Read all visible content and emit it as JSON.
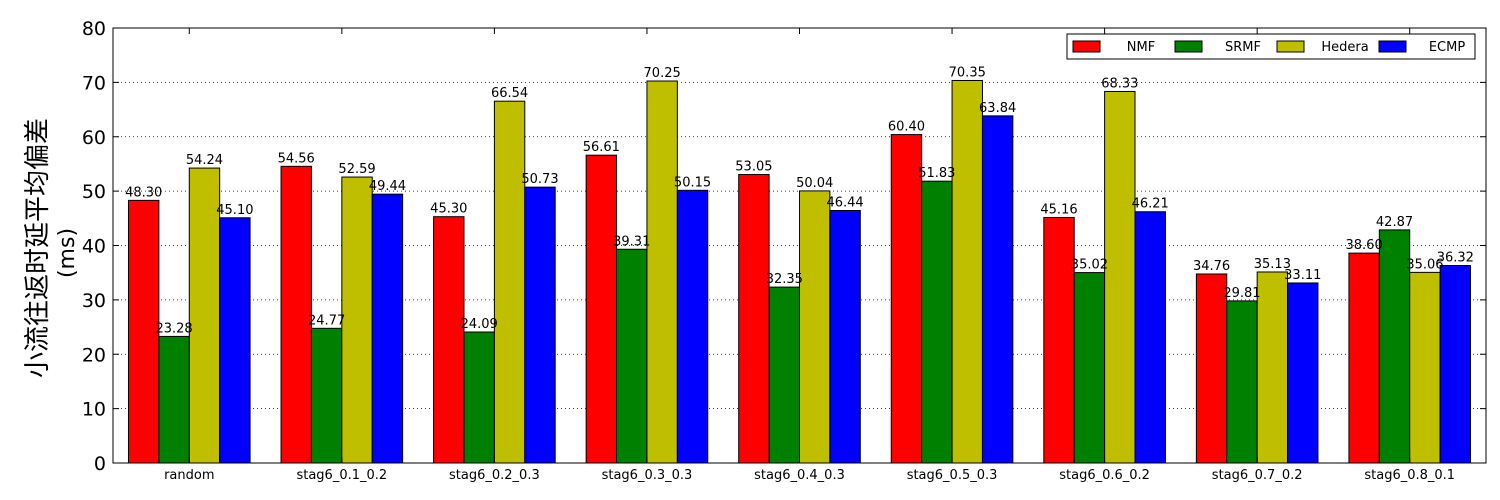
{
  "chart_data": {
    "type": "bar",
    "title": "",
    "xlabel": "",
    "ylabel": "小流往返时延平均偏差",
    "ylabel_unit": "(ms)",
    "ylim": [
      0,
      80
    ],
    "yticks": [
      0,
      10,
      20,
      30,
      40,
      50,
      60,
      70,
      80
    ],
    "grid": true,
    "legend_position": "top-right",
    "categories": [
      "random",
      "stag6_0.1_0.2",
      "stag6_0.2_0.3",
      "stag6_0.3_0.3",
      "stag6_0.4_0.3",
      "stag6_0.5_0.3",
      "stag6_0.6_0.2",
      "stag6_0.7_0.2",
      "stag6_0.8_0.1"
    ],
    "series": [
      {
        "name": "NMF",
        "color": "#ff0000",
        "values": [
          48.3,
          54.56,
          45.3,
          56.61,
          53.05,
          60.4,
          45.16,
          34.76,
          38.6
        ],
        "labels": [
          "48.30",
          "54.56",
          "45.30",
          "56.61",
          "53.05",
          "60.40",
          "45.16",
          "34.76",
          "38.60"
        ]
      },
      {
        "name": "SRMF",
        "color": "#008000",
        "values": [
          23.28,
          24.77,
          24.09,
          39.31,
          32.35,
          51.83,
          35.02,
          29.81,
          42.87
        ],
        "labels": [
          "23.28",
          "24.77",
          "24.09",
          "39.31",
          "32.35",
          "51.83",
          "35.02",
          "29.81",
          "42.87"
        ]
      },
      {
        "name": "Hedera",
        "color": "#bfbf00",
        "values": [
          54.24,
          52.59,
          66.54,
          70.25,
          50.04,
          70.35,
          68.33,
          35.13,
          35.06
        ],
        "labels": [
          "54.24",
          "52.59",
          "66.54",
          "70.25",
          "50.04",
          "70.35",
          "68.33",
          "35.13",
          "35.06"
        ]
      },
      {
        "name": "ECMP",
        "color": "#0000ff",
        "values": [
          45.1,
          49.44,
          50.73,
          50.15,
          46.44,
          63.84,
          46.21,
          33.11,
          36.32
        ],
        "labels": [
          "45.10",
          "49.44",
          "50.73",
          "50.15",
          "46.44",
          "63.84",
          "46.21",
          "33.11",
          "36.32"
        ]
      }
    ]
  }
}
